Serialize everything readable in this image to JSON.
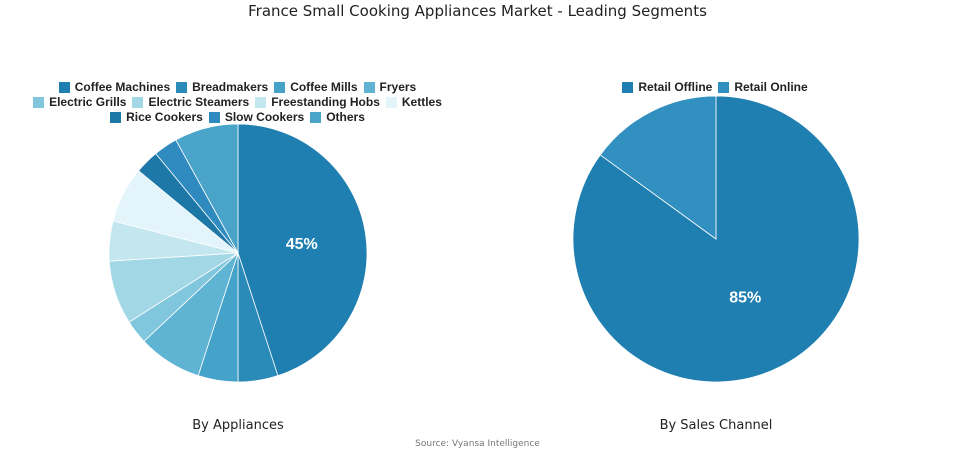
{
  "title": "France Small Cooking Appliances Market - Leading Segments",
  "source": "Source: Vyansa Intelligence",
  "chart_data": [
    {
      "type": "pie",
      "title": "By Appliances",
      "categories": [
        "Coffee Machines",
        "Breadmakers",
        "Coffee Mills",
        "Fryers",
        "Electric Grills",
        "Electric Steamers",
        "Freestanding Hobs",
        "Kettles",
        "Rice Cookers",
        "Slow Cookers",
        "Others"
      ],
      "values": [
        45,
        5,
        5,
        8,
        3,
        8,
        5,
        7,
        3,
        3,
        8
      ],
      "colors": [
        "#1f7fb0",
        "#2a8ab8",
        "#45a2c8",
        "#5fb3d3",
        "#80c6dd",
        "#a2d7e6",
        "#c4e7ef",
        "#e3f5fa",
        "#1d78a8",
        "#2f8bbf",
        "#4aa3c9"
      ],
      "data_labels": [
        "45%",
        "",
        "",
        "",
        "",
        "",
        "",
        "",
        "",
        "",
        ""
      ],
      "legend_position": "top"
    },
    {
      "type": "pie",
      "title": "By Sales Channel",
      "categories": [
        "Retail Offline",
        "Retail Online"
      ],
      "values": [
        85,
        15
      ],
      "colors": [
        "#1f7fb0",
        "#3190bf"
      ],
      "data_labels": [
        "85%",
        ""
      ],
      "legend_position": "top"
    }
  ]
}
